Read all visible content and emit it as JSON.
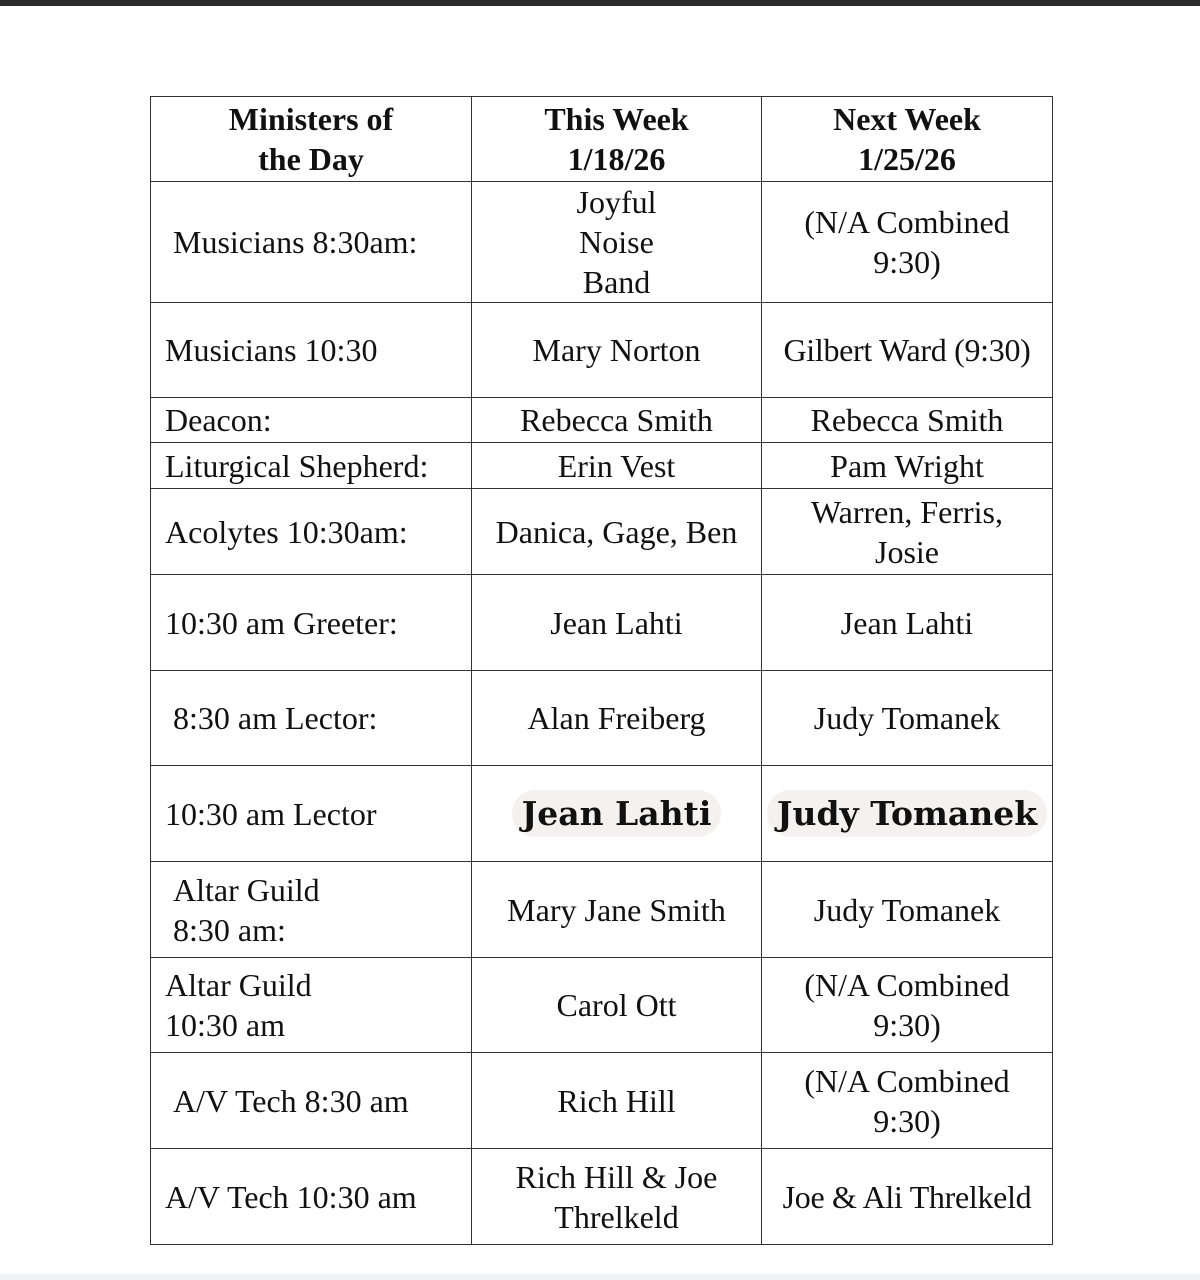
{
  "header": {
    "col1": "Ministers of the Day",
    "col2_title": "This Week",
    "col2_date": "1/18/26",
    "col3_title": "Next Week",
    "col3_date": "1/25/26"
  },
  "rows": [
    {
      "role": "Musicians 8:30am:",
      "this_week": "Joyful Noise Band",
      "next_week": "(N/A Combined 9:30)"
    },
    {
      "role": "Musicians 10:30",
      "this_week": "Mary Norton",
      "next_week": "Gilbert Ward (9:30)"
    },
    {
      "role": "Deacon:",
      "this_week": "Rebecca Smith",
      "next_week": "Rebecca Smith"
    },
    {
      "role": "Liturgical Shepherd:",
      "this_week": "Erin Vest",
      "next_week": "Pam Wright"
    },
    {
      "role": "Acolytes 10:30am:",
      "this_week": "Danica, Gage, Ben",
      "next_week": "Warren, Ferris, Josie"
    },
    {
      "role": "10:30 am Greeter:",
      "this_week": "Jean Lahti",
      "next_week": "Jean Lahti"
    },
    {
      "role": "8:30 am Lector:",
      "this_week": "Alan Freiberg",
      "next_week": "Judy Tomanek"
    },
    {
      "role": "10:30 am Lector",
      "this_week": "Jean Lahti",
      "next_week": "Judy Tomanek"
    },
    {
      "role": "Altar Guild 8:30 am:",
      "this_week": "Mary Jane Smith",
      "next_week": "Judy Tomanek"
    },
    {
      "role": "Altar Guild 10:30 am",
      "this_week": "Carol Ott",
      "next_week": "(N/A Combined 9:30)"
    },
    {
      "role": "A/V Tech 8:30 am",
      "this_week": "Rich Hill",
      "next_week": "(N/A Combined 9:30)"
    },
    {
      "role": "A/V Tech 10:30 am",
      "this_week": "Rich Hill & Joe Threlkeld",
      "next_week": "Joe & Ali Threlkeld"
    }
  ]
}
